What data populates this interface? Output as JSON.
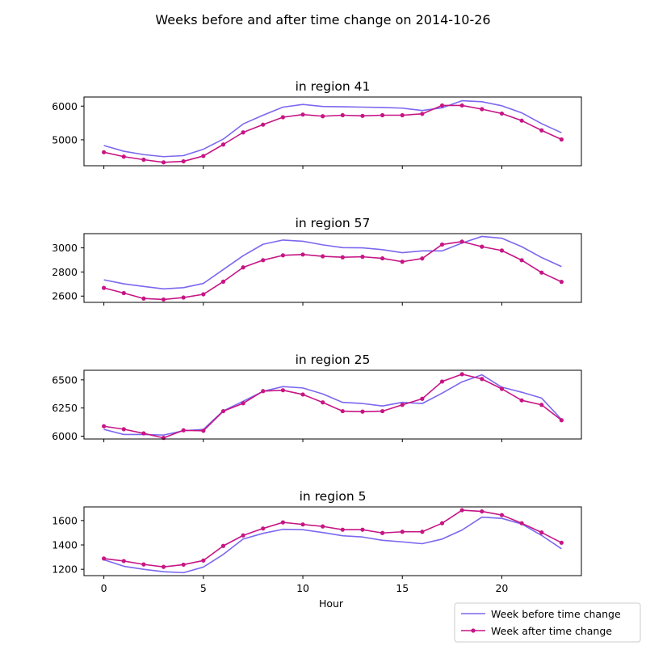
{
  "figure": {
    "suptitle": "Weeks before and after time change on 2014-10-26",
    "xlabel": "Hour"
  },
  "legend": {
    "placement": "bottom-right",
    "entries": [
      {
        "label": "Week before time change",
        "color": "#7b68ee",
        "marker": "none"
      },
      {
        "label": "Week after time change",
        "color": "#c71585",
        "marker": "dot"
      }
    ]
  },
  "chart_data": [
    {
      "type": "line",
      "title": "in region 41",
      "x": [
        0,
        1,
        2,
        3,
        4,
        5,
        6,
        7,
        8,
        9,
        10,
        11,
        12,
        13,
        14,
        15,
        16,
        17,
        18,
        19,
        20,
        21,
        22,
        23
      ],
      "xlim": [
        -1,
        24
      ],
      "xticks": [
        0,
        5,
        10,
        15,
        20
      ],
      "ylim": [
        4230,
        6270
      ],
      "yticks": [
        5000,
        6000
      ],
      "ytick_labels": [
        "5000",
        "6000"
      ],
      "series": [
        {
          "name": "Week before time change",
          "color": "#7b68ee",
          "values": [
            4830,
            4660,
            4560,
            4500,
            4530,
            4720,
            5020,
            5470,
            5730,
            5970,
            6050,
            5990,
            5980,
            5970,
            5960,
            5940,
            5870,
            5950,
            6160,
            6130,
            6010,
            5800,
            5480,
            5210
          ]
        },
        {
          "name": "Week after time change",
          "color": "#c71585",
          "values": [
            4630,
            4500,
            4410,
            4330,
            4360,
            4520,
            4860,
            5220,
            5450,
            5670,
            5750,
            5700,
            5730,
            5710,
            5730,
            5730,
            5770,
            6020,
            6020,
            5910,
            5780,
            5570,
            5280,
            5010
          ]
        }
      ]
    },
    {
      "type": "line",
      "title": "in region 57",
      "x": [
        0,
        1,
        2,
        3,
        4,
        5,
        6,
        7,
        8,
        9,
        10,
        11,
        12,
        13,
        14,
        15,
        16,
        17,
        18,
        19,
        20,
        21,
        22,
        23
      ],
      "xlim": [
        -1,
        24
      ],
      "xticks": [
        0,
        5,
        10,
        15,
        20
      ],
      "ylim": [
        2548,
        3118
      ],
      "yticks": [
        2600,
        2800,
        3000
      ],
      "ytick_labels": [
        "2600",
        "2800",
        "3000"
      ],
      "series": [
        {
          "name": "Week before time change",
          "color": "#7b68ee",
          "values": [
            2735,
            2702,
            2680,
            2660,
            2670,
            2705,
            2820,
            2935,
            3030,
            3065,
            3055,
            3025,
            3002,
            3000,
            2985,
            2960,
            2975,
            2975,
            3040,
            3095,
            3080,
            3010,
            2920,
            2845
          ]
        },
        {
          "name": "Week after time change",
          "color": "#c71585",
          "values": [
            2668,
            2625,
            2580,
            2572,
            2588,
            2615,
            2720,
            2838,
            2898,
            2938,
            2945,
            2930,
            2922,
            2926,
            2913,
            2885,
            2912,
            3028,
            3052,
            3010,
            2978,
            2898,
            2795,
            2718
          ]
        }
      ]
    },
    {
      "type": "line",
      "title": "in region 25",
      "x": [
        0,
        1,
        2,
        3,
        4,
        5,
        6,
        7,
        8,
        9,
        10,
        11,
        12,
        13,
        14,
        15,
        16,
        17,
        18,
        19,
        20,
        21,
        22,
        23
      ],
      "xlim": [
        -1,
        24
      ],
      "xticks": [
        0,
        5,
        10,
        15,
        20
      ],
      "ylim": [
        5975,
        6585
      ],
      "yticks": [
        6000,
        6250,
        6500
      ],
      "ytick_labels": [
        "6000",
        "6250",
        "6500"
      ],
      "series": [
        {
          "name": "Week before time change",
          "color": "#7b68ee",
          "values": [
            6060,
            6015,
            6015,
            6010,
            6048,
            6060,
            6225,
            6310,
            6398,
            6440,
            6428,
            6375,
            6300,
            6290,
            6268,
            6300,
            6290,
            6382,
            6482,
            6545,
            6435,
            6390,
            6338,
            6148
          ]
        },
        {
          "name": "Week after time change",
          "color": "#c71585",
          "values": [
            6088,
            6062,
            6025,
            5985,
            6052,
            6048,
            6222,
            6292,
            6400,
            6408,
            6370,
            6300,
            6222,
            6218,
            6222,
            6278,
            6332,
            6485,
            6550,
            6508,
            6420,
            6318,
            6278,
            6142
          ]
        }
      ]
    },
    {
      "type": "line",
      "title": "in region 5",
      "x": [
        0,
        1,
        2,
        3,
        4,
        5,
        6,
        7,
        8,
        9,
        10,
        11,
        12,
        13,
        14,
        15,
        16,
        17,
        18,
        19,
        20,
        21,
        22,
        23
      ],
      "xlim": [
        -1,
        24
      ],
      "xticks": [
        0,
        5,
        10,
        15,
        20
      ],
      "ylim": [
        1148,
        1712
      ],
      "yticks": [
        1200,
        1400,
        1600
      ],
      "ytick_labels": [
        "1200",
        "1400",
        "1600"
      ],
      "series": [
        {
          "name": "Week before time change",
          "color": "#7b68ee",
          "values": [
            1278,
            1225,
            1200,
            1180,
            1172,
            1218,
            1322,
            1448,
            1495,
            1528,
            1525,
            1502,
            1475,
            1465,
            1438,
            1425,
            1410,
            1448,
            1522,
            1628,
            1618,
            1572,
            1478,
            1368
          ]
        },
        {
          "name": "Week after time change",
          "color": "#c71585",
          "values": [
            1288,
            1268,
            1240,
            1220,
            1238,
            1272,
            1392,
            1478,
            1535,
            1585,
            1568,
            1552,
            1525,
            1525,
            1498,
            1508,
            1508,
            1578,
            1685,
            1675,
            1645,
            1578,
            1502,
            1418
          ]
        }
      ]
    }
  ]
}
